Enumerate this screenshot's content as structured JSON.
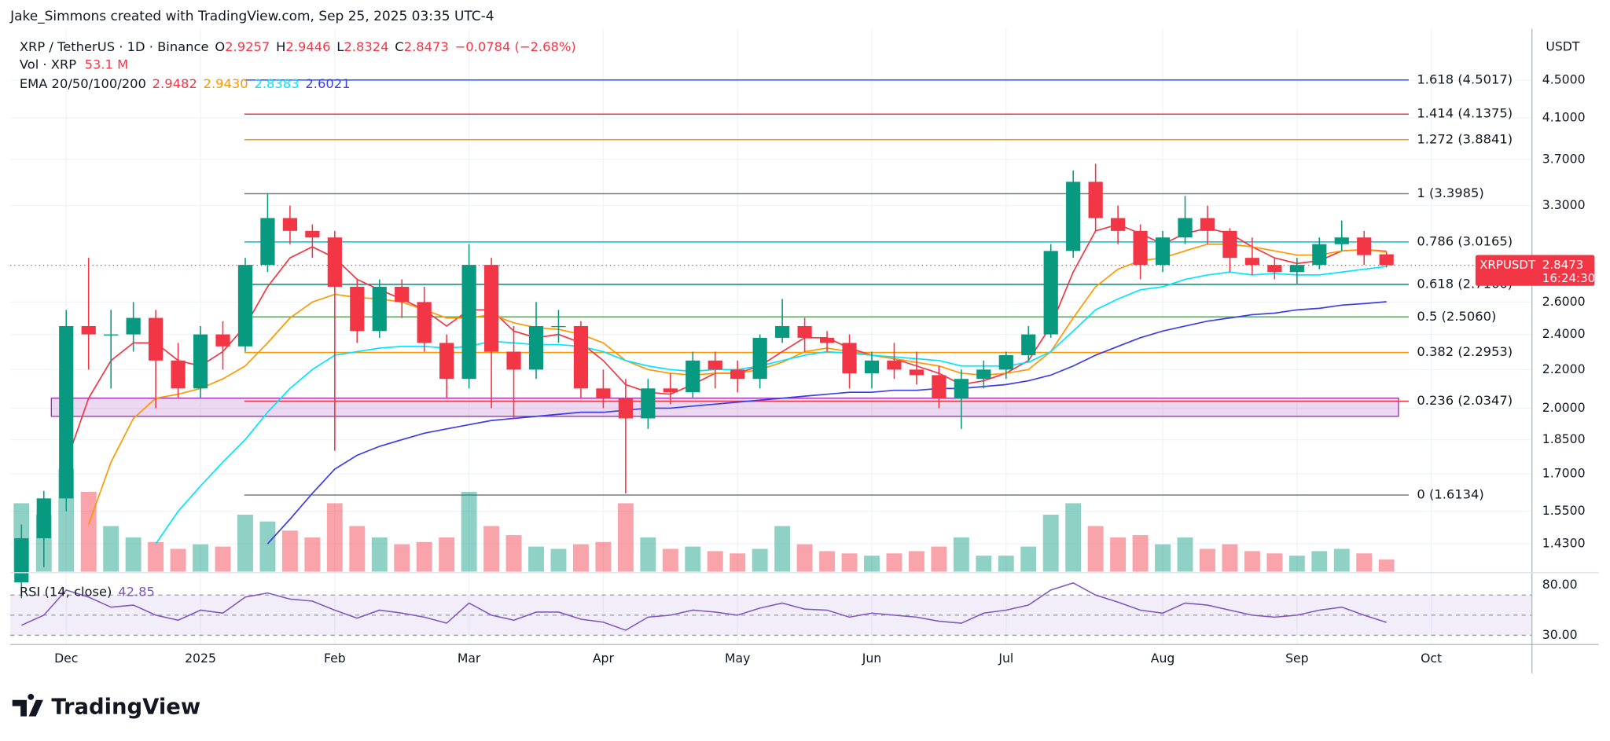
{
  "header": {
    "creator": "Jake_Simmons created with TradingView.com, Sep 25, 2025 03:35 UTC-4",
    "currency": "USDT"
  },
  "footer": {
    "brand": "TradingView"
  },
  "chart_data": {
    "type": "candlestick",
    "symbol": "XRP / TetherUS · 1D · Binance",
    "ohlc_legend": [
      {
        "key": "O",
        "value": "2.9257"
      },
      {
        "key": "H",
        "value": "2.9446"
      },
      {
        "key": "L",
        "value": "2.8324"
      },
      {
        "key": "C",
        "value": "2.8473"
      }
    ],
    "change": "−0.0784 (−2.68%)",
    "categories": [
      null,
      null,
      "Dec",
      null,
      null,
      null,
      null,
      null,
      "2025",
      null,
      null,
      null,
      null,
      null,
      "Feb",
      null,
      null,
      null,
      null,
      null,
      "Mar",
      null,
      null,
      null,
      null,
      null,
      "Apr",
      null,
      null,
      null,
      null,
      null,
      "May",
      null,
      null,
      null,
      null,
      null,
      "Jun",
      null,
      null,
      null,
      null,
      null,
      "Jul",
      null,
      null,
      null,
      null,
      null,
      null,
      "Aug",
      null,
      null,
      null,
      null,
      null,
      "Sep",
      null,
      null,
      null,
      null,
      null,
      "Oct",
      null,
      null,
      null,
      null
    ],
    "open": [
      1.3,
      1.45,
      1.6,
      2.45,
      2.4,
      2.4,
      2.5,
      2.25,
      2.1,
      2.4,
      2.33,
      2.85,
      3.2,
      3.1,
      3.05,
      2.7,
      2.42,
      2.7,
      2.6,
      2.35,
      2.15,
      2.85,
      2.3,
      2.2,
      2.45,
      2.45,
      2.1,
      2.05,
      1.95,
      2.1,
      2.08,
      2.25,
      2.2,
      2.15,
      2.38,
      2.45,
      2.38,
      2.35,
      2.18,
      2.25,
      2.2,
      2.17,
      2.05,
      2.15,
      2.2,
      2.28,
      2.4,
      2.95,
      3.5,
      3.2,
      3.1,
      2.85,
      3.05,
      3.2,
      3.1,
      2.9,
      2.85,
      2.8,
      2.85,
      3.0,
      3.05,
      2.9257,
      null,
      null,
      null,
      null,
      null,
      null
    ],
    "high": [
      1.5,
      1.63,
      2.55,
      2.9,
      2.55,
      2.6,
      2.55,
      2.35,
      2.45,
      2.48,
      2.9,
      3.4,
      3.3,
      3.15,
      3.1,
      2.75,
      2.75,
      2.75,
      2.7,
      2.4,
      3.0,
      2.9,
      2.45,
      2.6,
      2.55,
      2.48,
      2.2,
      2.15,
      2.15,
      2.18,
      2.3,
      2.3,
      2.25,
      2.4,
      2.62,
      2.5,
      2.42,
      2.4,
      2.3,
      2.35,
      2.3,
      2.22,
      2.2,
      2.25,
      2.3,
      2.45,
      3.0,
      3.6,
      3.66,
      3.3,
      3.15,
      3.1,
      3.38,
      3.3,
      3.12,
      3.05,
      2.9,
      2.9,
      3.05,
      3.18,
      3.1,
      2.9446,
      null,
      null,
      null,
      null,
      null,
      null
    ],
    "low": [
      1.25,
      1.35,
      1.55,
      2.2,
      2.1,
      2.3,
      2.0,
      2.05,
      2.05,
      2.2,
      2.3,
      2.8,
      3.0,
      2.9,
      1.8,
      2.35,
      2.38,
      2.5,
      2.3,
      2.05,
      2.1,
      2.0,
      1.95,
      2.15,
      2.35,
      2.05,
      2.0,
      1.62,
      1.9,
      2.02,
      2.05,
      2.1,
      2.08,
      2.1,
      2.35,
      2.3,
      2.3,
      2.1,
      2.1,
      2.15,
      2.12,
      2.0,
      1.9,
      2.1,
      2.15,
      2.25,
      2.38,
      2.9,
      3.1,
      3.0,
      2.75,
      2.8,
      3.0,
      3.0,
      2.8,
      2.78,
      2.75,
      2.72,
      2.82,
      2.95,
      2.85,
      2.8324,
      null,
      null,
      null,
      null,
      null,
      null
    ],
    "close": [
      1.45,
      1.6,
      2.45,
      2.4,
      2.4,
      2.5,
      2.25,
      2.1,
      2.4,
      2.33,
      2.85,
      3.2,
      3.1,
      3.05,
      2.7,
      2.42,
      2.7,
      2.6,
      2.35,
      2.15,
      2.85,
      2.3,
      2.2,
      2.45,
      2.45,
      2.1,
      2.05,
      1.95,
      2.1,
      2.08,
      2.25,
      2.2,
      2.15,
      2.38,
      2.45,
      2.38,
      2.35,
      2.18,
      2.25,
      2.2,
      2.17,
      2.05,
      2.15,
      2.2,
      2.28,
      2.4,
      2.95,
      3.5,
      3.2,
      3.1,
      2.85,
      3.05,
      3.2,
      3.1,
      2.9,
      2.85,
      2.8,
      2.85,
      3.0,
      3.05,
      2.92,
      2.8473,
      null,
      null,
      null,
      null,
      null,
      null
    ],
    "up_color": "#089981",
    "down_color": "#f23645",
    "log_scale": true,
    "grid": true,
    "ylim": [
      1.335,
      5.11
    ],
    "yticks": [
      {
        "value": 1.43,
        "label": "1.4300"
      },
      {
        "value": 1.55,
        "label": "1.5500"
      },
      {
        "value": 1.7,
        "label": "1.7000"
      },
      {
        "value": 1.85,
        "label": "1.8500"
      },
      {
        "value": 2,
        "label": "2.0000"
      },
      {
        "value": 2.2,
        "label": "2.2000"
      },
      {
        "value": 2.4,
        "label": "2.4000"
      },
      {
        "value": 2.6,
        "label": "2.6000"
      },
      {
        "value": 3.3,
        "label": "3.3000"
      },
      {
        "value": 3.7,
        "label": "3.7000"
      },
      {
        "value": 4.1,
        "label": "4.1000"
      },
      {
        "value": 4.5,
        "label": "4.5000"
      }
    ],
    "ema_label": "EMA 20/50/100/200",
    "ema_series": [
      {
        "color": "#f23645",
        "value_label": "2.9482",
        "values": [
          null,
          null,
          1.75,
          2.05,
          2.25,
          2.35,
          2.35,
          2.25,
          2.22,
          2.3,
          2.45,
          2.7,
          2.9,
          2.98,
          2.9,
          2.75,
          2.68,
          2.62,
          2.55,
          2.45,
          2.55,
          2.55,
          2.42,
          2.38,
          2.4,
          2.35,
          2.25,
          2.12,
          2.08,
          2.07,
          2.12,
          2.18,
          2.18,
          2.22,
          2.3,
          2.38,
          2.38,
          2.32,
          2.28,
          2.26,
          2.22,
          2.18,
          2.12,
          2.14,
          2.18,
          2.25,
          2.45,
          2.8,
          3.1,
          3.15,
          3.08,
          3.0,
          3.08,
          3.12,
          3.08,
          2.98,
          2.9,
          2.86,
          2.88,
          2.95,
          2.96,
          2.9482,
          null,
          null,
          null,
          null,
          null,
          null
        ]
      },
      {
        "color": "#ff9800",
        "value_label": "2.9430",
        "values": [
          null,
          null,
          null,
          1.5,
          1.75,
          1.95,
          2.05,
          2.07,
          2.1,
          2.15,
          2.22,
          2.35,
          2.5,
          2.6,
          2.65,
          2.63,
          2.62,
          2.6,
          2.55,
          2.5,
          2.5,
          2.52,
          2.47,
          2.44,
          2.43,
          2.4,
          2.35,
          2.25,
          2.2,
          2.18,
          2.17,
          2.18,
          2.18,
          2.2,
          2.24,
          2.3,
          2.32,
          2.3,
          2.28,
          2.26,
          2.24,
          2.22,
          2.18,
          2.17,
          2.18,
          2.2,
          2.3,
          2.5,
          2.7,
          2.82,
          2.88,
          2.9,
          2.95,
          3.0,
          3.0,
          2.98,
          2.95,
          2.92,
          2.92,
          2.95,
          2.96,
          2.943,
          null,
          null,
          null,
          null,
          null,
          null
        ]
      },
      {
        "color": "#00e5ff",
        "value_label": "2.8383",
        "values": [
          null,
          null,
          null,
          null,
          null,
          null,
          1.43,
          1.55,
          1.65,
          1.75,
          1.85,
          1.98,
          2.1,
          2.2,
          2.28,
          2.3,
          2.32,
          2.33,
          2.33,
          2.32,
          2.33,
          2.36,
          2.35,
          2.34,
          2.34,
          2.33,
          2.3,
          2.25,
          2.22,
          2.2,
          2.19,
          2.2,
          2.2,
          2.22,
          2.25,
          2.28,
          2.3,
          2.29,
          2.28,
          2.27,
          2.26,
          2.25,
          2.22,
          2.22,
          2.22,
          2.24,
          2.3,
          2.42,
          2.55,
          2.62,
          2.68,
          2.7,
          2.75,
          2.78,
          2.8,
          2.78,
          2.79,
          2.78,
          2.78,
          2.8,
          2.82,
          2.8383,
          null,
          null,
          null,
          null,
          null,
          null
        ]
      },
      {
        "color": "#3d3de6",
        "value_label": "2.6021",
        "values": [
          null,
          null,
          null,
          null,
          null,
          null,
          null,
          null,
          null,
          null,
          null,
          1.43,
          1.52,
          1.62,
          1.72,
          1.78,
          1.82,
          1.85,
          1.88,
          1.9,
          1.92,
          1.94,
          1.95,
          1.96,
          1.97,
          1.98,
          1.98,
          1.99,
          2.0,
          2.0,
          2.01,
          2.02,
          2.03,
          2.04,
          2.05,
          2.06,
          2.07,
          2.08,
          2.08,
          2.09,
          2.09,
          2.1,
          2.1,
          2.11,
          2.12,
          2.14,
          2.17,
          2.22,
          2.28,
          2.33,
          2.38,
          2.42,
          2.45,
          2.48,
          2.5,
          2.52,
          2.53,
          2.55,
          2.56,
          2.58,
          2.59,
          2.6021,
          null,
          null,
          null,
          null,
          null,
          null
        ]
      }
    ],
    "fib_levels": [
      {
        "label": "0 (1.6134)",
        "value": 1.6134,
        "color": "#787b86"
      },
      {
        "label": "0.236 (2.0347)",
        "value": 2.0347,
        "color": "#f23645"
      },
      {
        "label": "0.382 (2.2953)",
        "value": 2.2953,
        "color": "#ff9800"
      },
      {
        "label": "0.5 (2.5060)",
        "value": 2.506,
        "color": "#4caf50"
      },
      {
        "label": "0.618 (2.7166)",
        "value": 2.7166,
        "color": "#089981"
      },
      {
        "label": "0.786 (3.0165)",
        "value": 3.0165,
        "color": "#00bcd4"
      },
      {
        "label": "1 (3.3985)",
        "value": 3.3985,
        "color": "#787b86"
      },
      {
        "label": "1.272 (3.8841)",
        "value": 3.8841,
        "color": "#ff9800"
      },
      {
        "label": "1.414 (4.1375)",
        "value": 4.1375,
        "color": "#f23645"
      },
      {
        "label": "1.618 (4.5017)",
        "value": 4.5017,
        "color": "#2962ff"
      }
    ],
    "zone": {
      "top": 2.05,
      "bottom": 1.96,
      "color": "#9c27b0"
    },
    "price_tag": {
      "name": "XRPUSDT",
      "value_label": "2.8473",
      "countdown": "16:24:30",
      "color": "#f23645"
    },
    "volume": {
      "label": "Vol · XRP",
      "value_label": "53.1 M",
      "values": [
        300,
        250,
        450,
        350,
        200,
        150,
        130,
        100,
        120,
        110,
        250,
        220,
        180,
        150,
        300,
        200,
        150,
        120,
        130,
        150,
        350,
        200,
        160,
        110,
        100,
        120,
        130,
        300,
        150,
        100,
        110,
        90,
        80,
        100,
        200,
        120,
        90,
        80,
        70,
        80,
        90,
        110,
        150,
        70,
        70,
        110,
        250,
        300,
        200,
        150,
        160,
        120,
        150,
        100,
        120,
        90,
        80,
        70,
        90,
        100,
        80,
        53.1,
        null,
        null,
        null,
        null,
        null,
        null
      ]
    },
    "rsi": {
      "label": "RSI (14, close)",
      "value_label": "42.85",
      "color": "#7e57c2",
      "ylim": [
        20.8,
        90.2
      ],
      "yticks": [
        {
          "value": 80,
          "label": "80.00"
        },
        {
          "value": 30,
          "label": "30.00"
        }
      ],
      "levels": [
        70,
        50,
        30
      ],
      "values": [
        40,
        50,
        75,
        68,
        58,
        60,
        50,
        45,
        55,
        52,
        68,
        72,
        66,
        64,
        55,
        47,
        55,
        52,
        48,
        42,
        62,
        50,
        45,
        53,
        53,
        46,
        43,
        35,
        48,
        50,
        55,
        53,
        50,
        57,
        62,
        56,
        55,
        48,
        52,
        50,
        48,
        44,
        42,
        52,
        55,
        60,
        75,
        82,
        70,
        63,
        55,
        52,
        62,
        60,
        55,
        50,
        48,
        50,
        55,
        58,
        50,
        42.85,
        null,
        null,
        null,
        null,
        null,
        null
      ]
    }
  }
}
